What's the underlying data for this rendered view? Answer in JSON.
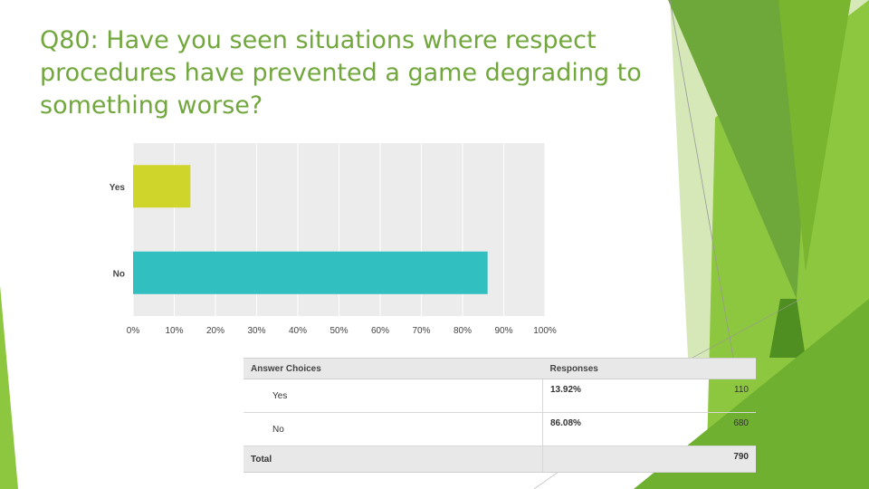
{
  "slide": {
    "title": "Q80: Have you seen situations where respect procedures have prevented a game degrading to something worse?",
    "title_color": "#71a73d"
  },
  "chart_data": {
    "type": "bar",
    "orientation": "horizontal",
    "categories": [
      "Yes",
      "No"
    ],
    "values": [
      13.92,
      86.08
    ],
    "colors": [
      "#d0d52b",
      "#31bfc0"
    ],
    "xlim": [
      0,
      100
    ],
    "xticks": [
      "0%",
      "10%",
      "20%",
      "30%",
      "40%",
      "50%",
      "60%",
      "70%",
      "80%",
      "90%",
      "100%"
    ],
    "grid": true,
    "plot_bg": "#ececec"
  },
  "table": {
    "headers": [
      "Answer Choices",
      "Responses",
      ""
    ],
    "rows": [
      {
        "choice": "Yes",
        "percent": "13.92%",
        "count": "110"
      },
      {
        "choice": "No",
        "percent": "86.08%",
        "count": "680"
      }
    ],
    "total_label": "Total",
    "total_value": "790"
  },
  "theme": {
    "green_dark": "#4f8f22",
    "green_mid": "#6fa83a",
    "green_light": "#8dc63f",
    "green_pale": "#d6e8b8"
  }
}
